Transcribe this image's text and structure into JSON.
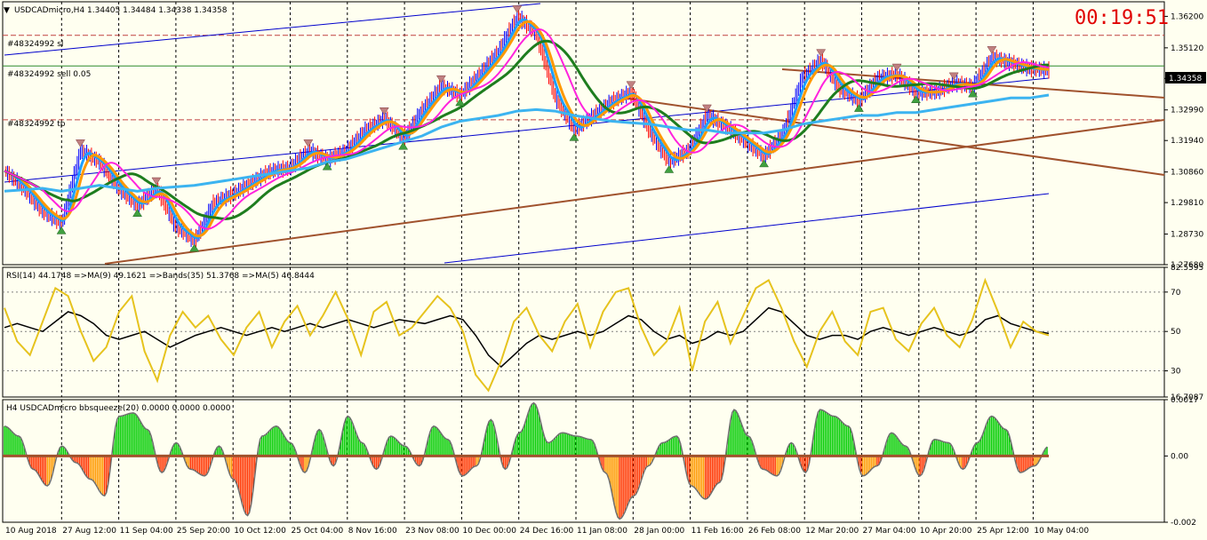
{
  "window": {
    "main_title": "USDCADmicro,H4  1.34405 1.34484 1.34338 1.34358",
    "countdown": "00:19:51"
  },
  "order_lines": {
    "sl_label": "#48324992 sl",
    "entry_label": "#48324992 sell 0.05",
    "tp_label": "#48324992 tp"
  },
  "colors": {
    "background": "#fffff0",
    "price_up": "#0000ff",
    "price_down": "#ff0000",
    "ma_fast": "#1ea0ff",
    "ma_orange": "#ff9900",
    "ma_green": "#1e7d1e",
    "ma_magenta": "#ff22dd",
    "ma_slow": "#3cb4f0",
    "channel": "#0000cc",
    "trendline": "#a0522d",
    "order_line": "#a0522d",
    "rsi": "#e6c31e",
    "rsi_ma": "#000000",
    "squeeze_up": "#00cc00",
    "squeeze_down": "#ff3300",
    "squeeze_weak": "#ff9900",
    "countdown": "#e00000"
  },
  "chart_data": [
    {
      "type": "line",
      "title": "USDCADmicro,H4  1.34405 1.34484 1.34338 1.34358",
      "y_ticks": [
        "1.36200",
        "1.35120",
        "1.34070",
        "1.32990",
        "1.31940",
        "1.30860",
        "1.29810",
        "1.28730",
        "1.27680"
      ],
      "ylim": [
        1.2768,
        1.367
      ],
      "current_price": "1.34358",
      "order_levels": {
        "sl": 1.3555,
        "entry": 1.345,
        "tp": 1.3265
      },
      "x_ticks": [
        "10 Aug 2018",
        "27 Aug 12:00",
        "11 Sep 04:00",
        "25 Sep 20:00",
        "10 Oct 12:00",
        "25 Oct 04:00",
        "8 Nov 16:00",
        "23 Nov 08:00",
        "10 Dec 00:00",
        "24 Dec 16:00",
        "11 Jan 08:00",
        "28 Jan 00:00",
        "11 Feb 16:00",
        "26 Feb 08:00",
        "12 Mar 20:00",
        "27 Mar 04:00",
        "10 Apr 20:00",
        "25 Apr 12:00",
        "10 May 04:00"
      ],
      "series": [
        {
          "values": [
            1.309,
            1.303,
            1.295,
            1.291,
            1.316,
            1.312,
            1.303,
            1.297,
            1.303,
            1.29,
            1.285,
            1.298,
            1.301,
            1.305,
            1.309,
            1.31,
            1.316,
            1.313,
            1.316,
            1.323,
            1.327,
            1.32,
            1.33,
            1.338,
            1.335,
            1.342,
            1.35,
            1.362,
            1.356,
            1.334,
            1.323,
            1.328,
            1.333,
            1.336,
            1.322,
            1.312,
            1.316,
            1.328,
            1.324,
            1.319,
            1.314,
            1.322,
            1.341,
            1.347,
            1.337,
            1.333,
            1.341,
            1.342,
            1.336,
            1.336,
            1.339,
            1.338,
            1.348,
            1.346,
            1.344,
            1.3436
          ]
        },
        {
          "values": [
            1.302,
            1.3025,
            1.303,
            1.302,
            1.303,
            1.304,
            1.303,
            1.302,
            1.303,
            1.3035,
            1.304,
            1.305,
            1.306,
            1.307,
            1.308,
            1.309,
            1.31,
            1.312,
            1.313,
            1.315,
            1.317,
            1.319,
            1.321,
            1.324,
            1.326,
            1.327,
            1.328,
            1.3295,
            1.33,
            1.3295,
            1.328,
            1.327,
            1.326,
            1.3255,
            1.325,
            1.324,
            1.323,
            1.323,
            1.322,
            1.322,
            1.322,
            1.323,
            1.325,
            1.326,
            1.327,
            1.328,
            1.328,
            1.329,
            1.329,
            1.33,
            1.331,
            1.332,
            1.333,
            1.334,
            1.334,
            1.335
          ]
        }
      ]
    },
    {
      "type": "line",
      "title": "RSI(14) 44.1748  =>MA(9) 49.1621  =>Bands(35) 51.3768  =>MA(5) 46.8444",
      "y_ticks": [
        "82.5595",
        "70",
        "50",
        "30",
        "16.7087"
      ],
      "ylim": [
        16.7087,
        82.5595
      ],
      "levels": [
        70,
        50,
        30
      ],
      "series": [
        {
          "values": [
            62,
            45,
            38,
            55,
            72,
            68,
            50,
            35,
            42,
            60,
            68,
            40,
            25,
            48,
            60,
            52,
            58,
            46,
            38,
            52,
            60,
            42,
            55,
            63,
            48,
            58,
            70,
            56,
            38,
            60,
            65,
            48,
            52,
            60,
            68,
            62,
            50,
            28,
            20,
            35,
            55,
            62,
            48,
            40,
            55,
            64,
            42,
            60,
            70,
            72,
            52,
            38,
            45,
            62,
            30,
            55,
            65,
            44,
            58,
            72,
            76,
            62,
            45,
            32,
            50,
            60,
            45,
            38,
            60,
            62,
            46,
            40,
            54,
            62,
            48,
            42,
            56,
            76,
            60,
            42,
            55,
            50,
            48
          ]
        },
        {
          "values": [
            52,
            54,
            52,
            50,
            55,
            60,
            58,
            54,
            48,
            46,
            48,
            50,
            46,
            42,
            45,
            48,
            50,
            52,
            50,
            48,
            50,
            52,
            50,
            52,
            54,
            52,
            54,
            56,
            54,
            52,
            54,
            56,
            55,
            54,
            56,
            58,
            56,
            48,
            38,
            32,
            38,
            44,
            48,
            46,
            48,
            50,
            48,
            50,
            54,
            58,
            56,
            50,
            46,
            48,
            44,
            46,
            50,
            48,
            50,
            56,
            62,
            60,
            54,
            48,
            46,
            48,
            48,
            46,
            50,
            52,
            50,
            48,
            50,
            52,
            50,
            48,
            50,
            56,
            58,
            54,
            52,
            50,
            49
          ]
        }
      ]
    },
    {
      "type": "bar",
      "title": "H4 USDCADmicro bbsqueeze(20) 0.0000 0.0000 0.0000",
      "y_ticks": [
        "0.0017",
        "0.00",
        "-0.002"
      ],
      "ylim": [
        -0.002,
        0.0017
      ],
      "values": [
        0.0009,
        0.0006,
        -0.0004,
        -0.0009,
        0.0003,
        -0.0002,
        -0.0007,
        -0.0012,
        0.0012,
        0.0013,
        0.0008,
        -0.0005,
        0.0004,
        -0.0004,
        -0.0006,
        0.0003,
        -0.0007,
        -0.0018,
        0.0006,
        0.0009,
        0.0004,
        -0.0005,
        0.0008,
        -0.0003,
        0.0012,
        0.0004,
        -0.0004,
        0.0006,
        0.0003,
        -0.0003,
        0.0009,
        0.0005,
        -0.0006,
        -0.0003,
        0.0011,
        -0.0004,
        0.0007,
        0.0016,
        0.0004,
        0.0007,
        0.0006,
        0.0005,
        -0.0005,
        -0.0019,
        -0.0012,
        -0.0003,
        0.0004,
        0.0006,
        -0.0009,
        -0.0013,
        -0.0008,
        0.0014,
        0.0006,
        -0.0004,
        -0.0006,
        0.0004,
        -0.0005,
        0.0014,
        0.0012,
        0.0009,
        -0.0006,
        -0.0003,
        0.0007,
        0.0003,
        -0.0006,
        0.0005,
        0.0004,
        -0.0004,
        0.0004,
        0.0012,
        0.0008,
        -0.0005,
        -0.0003,
        0.0003
      ]
    }
  ]
}
